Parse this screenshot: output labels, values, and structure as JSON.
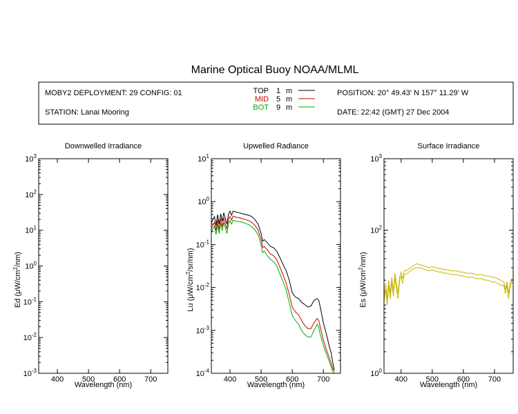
{
  "title": "Marine Optical Buoy NOAA/MLML",
  "header": {
    "deployment": "MOBY2 DEPLOYMENT: 29 CONFIG: 01",
    "station": "STATION: Lanai Mooring",
    "position": "POSITION: 20° 49.43' N   157° 11.29' W",
    "date": "DATE: 22:42 (GMT) 27 Dec 2004",
    "depth_legend": [
      {
        "label": "TOP",
        "value": "1",
        "unit": "m",
        "color": "#000000"
      },
      {
        "label": "MID",
        "value": "5",
        "unit": "m",
        "color": "#cc0000"
      },
      {
        "label": "BOT",
        "value": "9",
        "unit": "m",
        "color": "#00aa00"
      }
    ]
  },
  "colors": {
    "top": "#000000",
    "mid": "#cc0000",
    "bot": "#00aa00",
    "surface": "#c8b400"
  },
  "chart_data": [
    {
      "type": "line",
      "title": "Downwelled Irradiance",
      "xlabel": "Wavelength (nm)",
      "ylabel_parts": [
        "Ed  (",
        "μW/cm",
        "2",
        "/nm)"
      ],
      "xlim": [
        340,
        755
      ],
      "xticks": [
        "400",
        "500",
        "600",
        "700"
      ],
      "yscale": "log",
      "ylim": [
        0.001,
        1000
      ],
      "yticks": [
        {
          "base": "10",
          "exp": "-3"
        },
        {
          "base": "10",
          "exp": "-2"
        },
        {
          "base": "10",
          "exp": "-1"
        },
        {
          "base": "10",
          "exp": "0"
        },
        {
          "base": "10",
          "exp": "1"
        },
        {
          "base": "10",
          "exp": "2"
        },
        {
          "base": "10",
          "exp": "3"
        }
      ],
      "series": []
    },
    {
      "type": "line",
      "title": "Upwelled Radiance",
      "xlabel": "Wavelength (nm)",
      "ylabel_parts": [
        "Lu  (",
        "μW/cm",
        "2",
        "/sr/nm)"
      ],
      "xlim": [
        340,
        755
      ],
      "xticks": [
        "400",
        "500",
        "600",
        "700"
      ],
      "yscale": "log",
      "ylim": [
        0.0001,
        10
      ],
      "yticks": [
        {
          "base": "10",
          "exp": "-4"
        },
        {
          "base": "10",
          "exp": "-3"
        },
        {
          "base": "10",
          "exp": "-2"
        },
        {
          "base": "10",
          "exp": "-1"
        },
        {
          "base": "10",
          "exp": "0"
        },
        {
          "base": "10",
          "exp": "1"
        }
      ],
      "series": [
        {
          "key": "top",
          "color": "#000000",
          "x": [
            340,
            350,
            355,
            360,
            365,
            370,
            375,
            380,
            385,
            390,
            395,
            400,
            405,
            410,
            420,
            430,
            440,
            450,
            460,
            470,
            480,
            490,
            500,
            505,
            510,
            520,
            530,
            540,
            550,
            560,
            570,
            580,
            590,
            600,
            610,
            620,
            630,
            640,
            650,
            660,
            670,
            680,
            685,
            690,
            700,
            710,
            720,
            725,
            730,
            735
          ],
          "y": [
            0.32,
            0.45,
            0.28,
            0.5,
            0.3,
            0.52,
            0.35,
            0.55,
            0.4,
            0.3,
            0.5,
            0.6,
            0.48,
            0.6,
            0.57,
            0.55,
            0.52,
            0.5,
            0.48,
            0.45,
            0.38,
            0.3,
            0.18,
            0.12,
            0.13,
            0.11,
            0.09,
            0.085,
            0.07,
            0.05,
            0.035,
            0.025,
            0.015,
            0.0075,
            0.006,
            0.0055,
            0.0045,
            0.004,
            0.0035,
            0.0037,
            0.005,
            0.0055,
            0.005,
            0.0035,
            0.0015,
            0.0008,
            0.0004,
            0.0003,
            0.00018,
            0.00012
          ]
        },
        {
          "key": "mid",
          "color": "#cc0000",
          "x": [
            340,
            350,
            355,
            360,
            365,
            370,
            375,
            380,
            385,
            390,
            395,
            400,
            405,
            410,
            420,
            430,
            440,
            450,
            460,
            470,
            480,
            490,
            500,
            505,
            510,
            520,
            530,
            540,
            550,
            560,
            570,
            580,
            590,
            600,
            610,
            620,
            630,
            640,
            650,
            660,
            670,
            680,
            685,
            690,
            700,
            710,
            720,
            725,
            730,
            735
          ],
          "y": [
            0.24,
            0.33,
            0.21,
            0.38,
            0.22,
            0.4,
            0.26,
            0.42,
            0.3,
            0.23,
            0.38,
            0.45,
            0.37,
            0.46,
            0.43,
            0.42,
            0.4,
            0.38,
            0.36,
            0.33,
            0.28,
            0.22,
            0.13,
            0.085,
            0.09,
            0.075,
            0.06,
            0.055,
            0.045,
            0.03,
            0.02,
            0.013,
            0.007,
            0.0035,
            0.0027,
            0.0023,
            0.0017,
            0.0013,
            0.0011,
            0.0011,
            0.0015,
            0.0019,
            0.0017,
            0.0012,
            0.0006,
            0.00035,
            0.00022,
            0.00017,
            0.00013,
            0.00011
          ]
        },
        {
          "key": "bot",
          "color": "#00aa00",
          "x": [
            340,
            350,
            355,
            360,
            365,
            370,
            375,
            380,
            385,
            390,
            395,
            400,
            405,
            410,
            420,
            430,
            440,
            450,
            460,
            470,
            480,
            490,
            500,
            505,
            510,
            520,
            530,
            540,
            550,
            560,
            570,
            580,
            590,
            600,
            610,
            620,
            630,
            640,
            650,
            660,
            670,
            680,
            685,
            690,
            700,
            710,
            720,
            725,
            730,
            735
          ],
          "y": [
            0.2,
            0.27,
            0.17,
            0.3,
            0.18,
            0.32,
            0.21,
            0.33,
            0.24,
            0.18,
            0.3,
            0.36,
            0.3,
            0.37,
            0.35,
            0.34,
            0.33,
            0.31,
            0.29,
            0.26,
            0.22,
            0.17,
            0.1,
            0.065,
            0.07,
            0.055,
            0.045,
            0.04,
            0.032,
            0.021,
            0.014,
            0.009,
            0.0045,
            0.0022,
            0.0017,
            0.0014,
            0.001,
            0.0008,
            0.0007,
            0.0007,
            0.001,
            0.0014,
            0.0012,
            0.0008,
            0.00045,
            0.00028,
            0.00018,
            0.00014,
            0.00011,
            0.0001
          ]
        }
      ]
    },
    {
      "type": "line",
      "title": "Surface Irradiance",
      "xlabel": "Wavelength (nm)",
      "ylabel_parts": [
        "Es  (",
        "μW/cm",
        "2",
        "/nm)"
      ],
      "xlim": [
        345,
        760
      ],
      "xticks": [
        "400",
        "500",
        "600",
        "700"
      ],
      "yscale": "log",
      "ylim": [
        1,
        1000
      ],
      "yticks": [
        {
          "base": "10",
          "exp": "0"
        },
        {
          "base": "10",
          "exp": "2"
        },
        {
          "base": "10",
          "exp": "3"
        }
      ],
      "series": [
        {
          "key": "surface-a",
          "color": "#c8b400",
          "x": [
            345,
            350,
            355,
            360,
            365,
            370,
            375,
            380,
            385,
            390,
            395,
            400,
            405,
            410,
            420,
            430,
            440,
            450,
            460,
            470,
            480,
            490,
            500,
            510,
            520,
            530,
            540,
            550,
            560,
            570,
            580,
            590,
            600,
            610,
            620,
            630,
            640,
            650,
            660,
            670,
            680,
            690,
            700,
            710,
            720,
            730,
            735,
            740,
            745,
            750,
            755,
            760
          ],
          "y": [
            12,
            18,
            11,
            20,
            13,
            22,
            14,
            25,
            18,
            13,
            22,
            26,
            21,
            27,
            28,
            30,
            32,
            34,
            33,
            32,
            31,
            30,
            31,
            30,
            29,
            29,
            28,
            28,
            27,
            27,
            27,
            26,
            26,
            25,
            25,
            25,
            24,
            24,
            24,
            23,
            23,
            22,
            22,
            21,
            20,
            19,
            15,
            19,
            13,
            18,
            21,
            20
          ]
        },
        {
          "key": "surface-b",
          "color": "#c8b400",
          "x": [
            345,
            350,
            355,
            360,
            365,
            370,
            375,
            380,
            385,
            390,
            395,
            400,
            405,
            410,
            420,
            430,
            440,
            450,
            460,
            470,
            480,
            490,
            500,
            510,
            520,
            530,
            540,
            550,
            560,
            570,
            580,
            590,
            600,
            610,
            620,
            630,
            640,
            650,
            660,
            670,
            680,
            690,
            700,
            710,
            720,
            730,
            735,
            740,
            745,
            750,
            755,
            760
          ],
          "y": [
            10,
            15,
            9,
            17,
            11,
            19,
            12,
            22,
            15,
            11,
            19,
            23,
            18,
            24,
            25,
            27,
            29,
            30,
            30,
            29,
            28,
            27,
            28,
            27,
            26,
            26,
            25,
            25,
            24,
            24,
            24,
            23,
            23,
            22,
            22,
            22,
            21,
            21,
            21,
            20,
            20,
            19,
            19,
            18,
            17,
            17,
            13,
            17,
            11,
            16,
            19,
            18
          ]
        }
      ]
    }
  ]
}
